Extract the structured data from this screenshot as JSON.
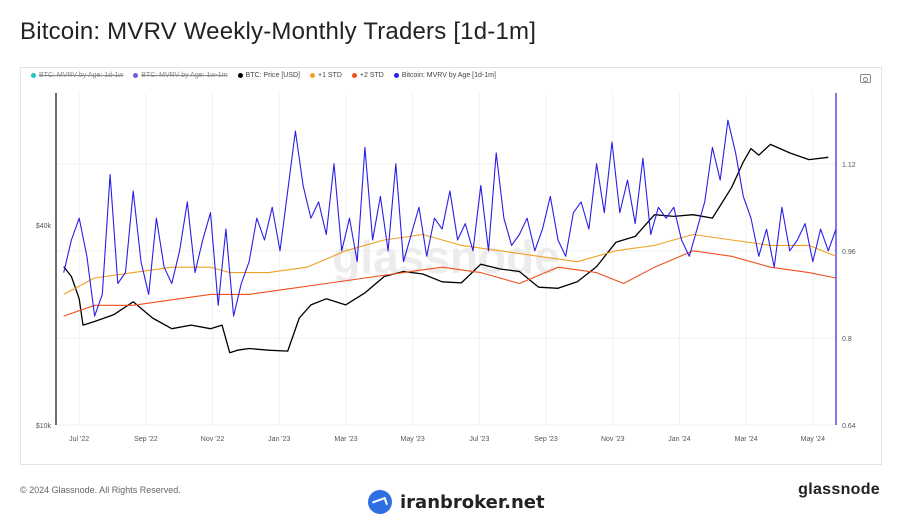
{
  "title": "Bitcoin: MVRV Weekly-Monthly Traders [1d-1m]",
  "footer": {
    "copyright": "© 2024 Glassnode. All Rights Reserved.",
    "brand_right": "glassnode",
    "brand_center": "iranbroker.net"
  },
  "watermark": "glassnode",
  "legend": [
    {
      "label": "BTC: MVRV by Age: 1d-1w",
      "color": "#26c6c6",
      "enabled": false
    },
    {
      "label": "BTC: MVRV by Age: 1w-1m",
      "color": "#6a5fd8",
      "enabled": false
    },
    {
      "label": "BTC: Price [USD]",
      "color": "#000000",
      "enabled": true
    },
    {
      "label": "+1 STD",
      "color": "#f2a024",
      "enabled": true
    },
    {
      "label": "+2 STD",
      "color": "#f0501e",
      "enabled": true
    },
    {
      "label": "Bitcoin: MVRV by Age [1d-1m]",
      "color": "#2a1ee6",
      "enabled": true
    }
  ],
  "chart_data": {
    "type": "line",
    "x_ticks": [
      "Jul '22",
      "Sep '22",
      "Nov '22",
      "Jan '23",
      "Mar '23",
      "May '23",
      "Jul '23",
      "Sep '23",
      "Nov '23",
      "Jan '24",
      "Mar '24",
      "May '24"
    ],
    "x_range": [
      2022.4,
      2024.42
    ],
    "y_left": {
      "scale": "log",
      "ticks": [
        "$10k",
        "$40k"
      ],
      "tick_values": [
        10000,
        40000
      ],
      "range": [
        10000,
        100000
      ]
    },
    "y_right": {
      "ticks": [
        "0.64",
        "0.8",
        "0.96",
        "1.12"
      ],
      "tick_values": [
        0.64,
        0.8,
        0.96,
        1.12
      ],
      "range": [
        0.64,
        1.25
      ]
    },
    "series": [
      {
        "name": "BTC: Price [USD]",
        "axis": "left",
        "color": "#000000",
        "x": [
          2022.42,
          2022.44,
          2022.46,
          2022.47,
          2022.5,
          2022.55,
          2022.6,
          2022.65,
          2022.7,
          2022.75,
          2022.8,
          2022.83,
          2022.85,
          2022.87,
          2022.9,
          2022.95,
          2023.0,
          2023.03,
          2023.06,
          2023.1,
          2023.15,
          2023.2,
          2023.25,
          2023.3,
          2023.35,
          2023.4,
          2023.45,
          2023.5,
          2023.55,
          2023.6,
          2023.65,
          2023.7,
          2023.75,
          2023.8,
          2023.85,
          2023.9,
          2023.95,
          2024.0,
          2024.05,
          2024.1,
          2024.15,
          2024.18,
          2024.2,
          2024.22,
          2024.25,
          2024.3,
          2024.35,
          2024.4
        ],
        "values": [
          30000,
          28000,
          24000,
          20000,
          20500,
          21500,
          23500,
          21000,
          19500,
          20000,
          19500,
          20000,
          16500,
          16800,
          17000,
          16800,
          16700,
          21000,
          23000,
          24000,
          23000,
          25000,
          28000,
          29000,
          28500,
          27000,
          26800,
          30500,
          29500,
          29000,
          26000,
          25800,
          27000,
          30000,
          35500,
          37000,
          43000,
          42500,
          43000,
          42000,
          52000,
          62000,
          68000,
          65000,
          70000,
          66000,
          63000,
          64000
        ]
      },
      {
        "name": "+1 STD",
        "axis": "right",
        "color": "#f2a024",
        "x": [
          2022.42,
          2022.5,
          2022.6,
          2022.7,
          2022.8,
          2022.85,
          2022.95,
          2023.05,
          2023.15,
          2023.25,
          2023.35,
          2023.45,
          2023.55,
          2023.65,
          2023.75,
          2023.85,
          2023.95,
          2024.05,
          2024.15,
          2024.25,
          2024.35,
          2024.42
        ],
        "values": [
          0.88,
          0.91,
          0.92,
          0.93,
          0.93,
          0.92,
          0.92,
          0.93,
          0.96,
          0.98,
          0.99,
          0.97,
          0.96,
          0.95,
          0.94,
          0.96,
          0.97,
          0.99,
          0.98,
          0.97,
          0.97,
          0.95
        ]
      },
      {
        "name": "+2 STD",
        "axis": "right",
        "color": "#f0501e",
        "x": [
          2022.42,
          2022.5,
          2022.6,
          2022.7,
          2022.8,
          2022.9,
          2023.0,
          2023.1,
          2023.2,
          2023.3,
          2023.4,
          2023.5,
          2023.6,
          2023.7,
          2023.8,
          2023.87,
          2023.95,
          2024.05,
          2024.15,
          2024.25,
          2024.35,
          2024.42
        ],
        "values": [
          0.84,
          0.86,
          0.86,
          0.87,
          0.88,
          0.88,
          0.89,
          0.9,
          0.91,
          0.92,
          0.93,
          0.92,
          0.9,
          0.93,
          0.92,
          0.9,
          0.93,
          0.96,
          0.95,
          0.93,
          0.92,
          0.91
        ]
      },
      {
        "name": "Bitcoin: MVRV by Age [1d-1m]",
        "axis": "right",
        "color": "#2a1ee6",
        "x": [
          2022.42,
          2022.44,
          2022.46,
          2022.48,
          2022.5,
          2022.52,
          2022.54,
          2022.56,
          2022.58,
          2022.6,
          2022.62,
          2022.64,
          2022.66,
          2022.68,
          2022.7,
          2022.72,
          2022.74,
          2022.76,
          2022.78,
          2022.8,
          2022.82,
          2022.84,
          2022.86,
          2022.88,
          2022.9,
          2022.92,
          2022.94,
          2022.96,
          2022.98,
          2023.0,
          2023.02,
          2023.04,
          2023.06,
          2023.08,
          2023.1,
          2023.12,
          2023.14,
          2023.16,
          2023.18,
          2023.2,
          2023.22,
          2023.24,
          2023.26,
          2023.28,
          2023.3,
          2023.32,
          2023.34,
          2023.36,
          2023.38,
          2023.4,
          2023.42,
          2023.44,
          2023.46,
          2023.48,
          2023.5,
          2023.52,
          2023.54,
          2023.56,
          2023.58,
          2023.6,
          2023.62,
          2023.64,
          2023.66,
          2023.68,
          2023.7,
          2023.72,
          2023.74,
          2023.76,
          2023.78,
          2023.8,
          2023.82,
          2023.84,
          2023.86,
          2023.88,
          2023.9,
          2023.92,
          2023.94,
          2023.96,
          2023.98,
          2024.0,
          2024.02,
          2024.04,
          2024.06,
          2024.08,
          2024.1,
          2024.12,
          2024.14,
          2024.16,
          2024.18,
          2024.2,
          2024.22,
          2024.24,
          2024.26,
          2024.28,
          2024.3,
          2024.32,
          2024.34,
          2024.36,
          2024.38,
          2024.4,
          2024.42
        ],
        "values": [
          0.92,
          0.98,
          1.02,
          0.95,
          0.84,
          0.88,
          1.1,
          0.9,
          0.92,
          1.07,
          0.94,
          0.88,
          1.02,
          0.93,
          0.9,
          0.96,
          1.05,
          0.92,
          0.98,
          1.03,
          0.86,
          1.0,
          0.84,
          0.9,
          0.94,
          1.02,
          0.98,
          1.04,
          0.96,
          1.07,
          1.18,
          1.08,
          1.02,
          1.05,
          0.99,
          1.12,
          0.96,
          1.02,
          0.94,
          1.15,
          0.98,
          1.06,
          0.96,
          1.12,
          0.94,
          0.99,
          1.04,
          0.95,
          1.02,
          1.0,
          1.07,
          0.98,
          1.01,
          0.96,
          1.08,
          0.96,
          1.14,
          1.02,
          0.97,
          0.99,
          1.02,
          0.96,
          1.0,
          1.06,
          0.98,
          0.95,
          1.03,
          1.05,
          1.0,
          1.12,
          1.03,
          1.16,
          1.03,
          1.09,
          1.01,
          1.13,
          0.99,
          1.04,
          1.02,
          1.04,
          0.98,
          0.95,
          1.0,
          1.05,
          1.15,
          1.09,
          1.2,
          1.14,
          1.06,
          1.02,
          0.95,
          1.0,
          0.93,
          1.04,
          0.96,
          0.98,
          1.01,
          0.94,
          1.0,
          0.96,
          1.0
        ]
      }
    ]
  }
}
